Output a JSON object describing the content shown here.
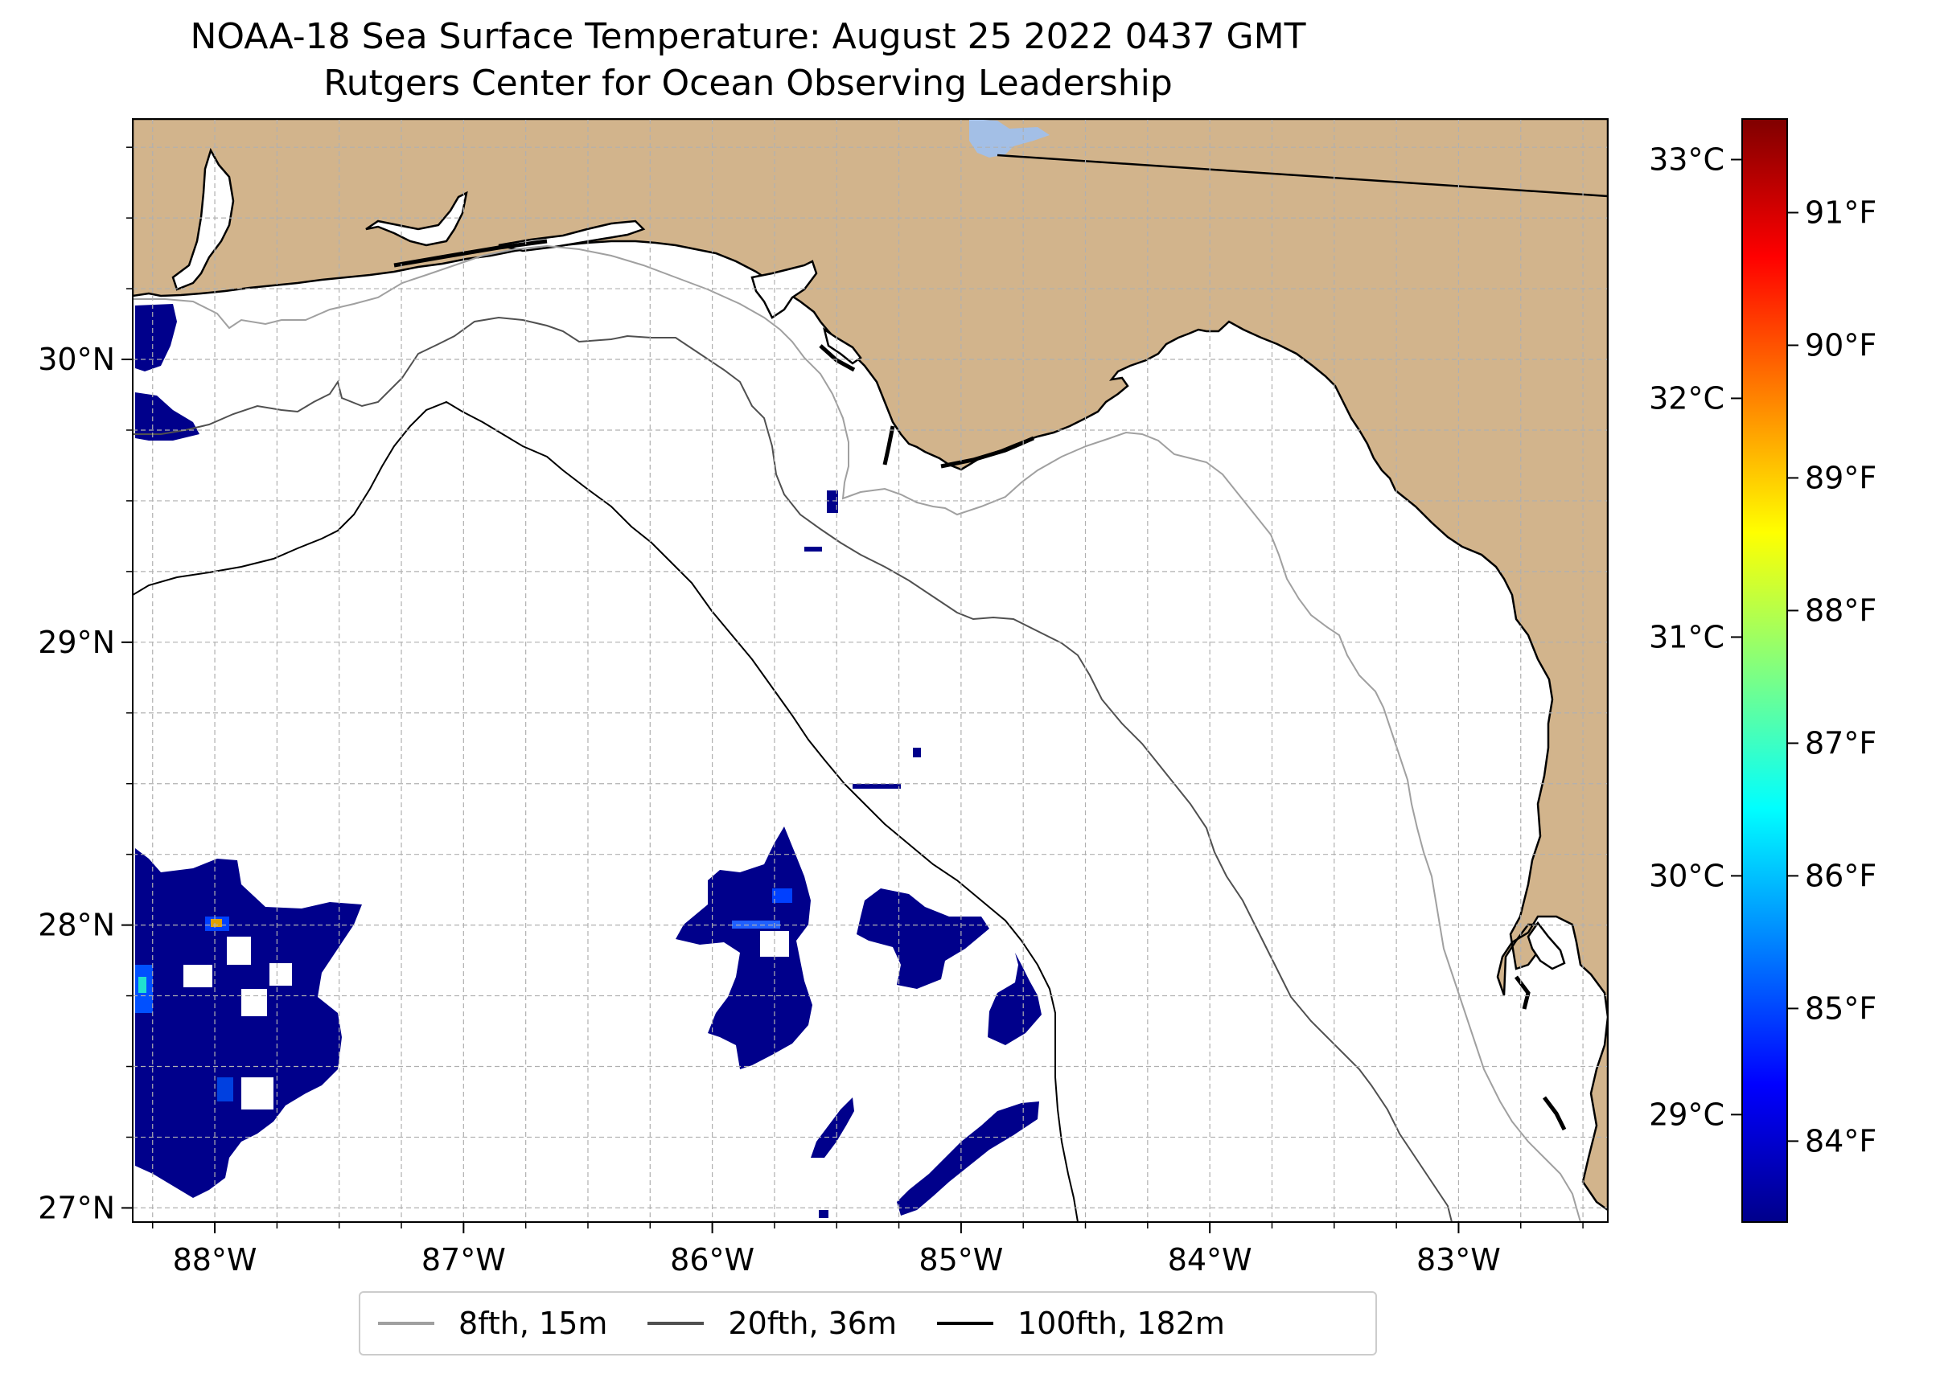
{
  "title": {
    "line1": "NOAA-18 Sea Surface Temperature: August 25 2022 0437 GMT",
    "line2": "Rutgers Center for Ocean Observing Leadership"
  },
  "map": {
    "lon_range": [
      -88.33,
      -82.4
    ],
    "lat_range": [
      26.95,
      30.85
    ],
    "lon_ticks": [
      {
        "value": -88,
        "label": "88°W"
      },
      {
        "value": -87,
        "label": "87°W"
      },
      {
        "value": -86,
        "label": "86°W"
      },
      {
        "value": -85,
        "label": "85°W"
      },
      {
        "value": -84,
        "label": "84°W"
      },
      {
        "value": -83,
        "label": "83°W"
      }
    ],
    "lat_ticks": [
      {
        "value": 27,
        "label": "27°N"
      },
      {
        "value": 28,
        "label": "28°N"
      },
      {
        "value": 29,
        "label": "29°N"
      },
      {
        "value": 30,
        "label": "30°N"
      }
    ],
    "colors": {
      "land": "#d2b48c",
      "ocean": "#ffffff",
      "lake": "#a3bfe6",
      "coastline": "#000000",
      "grid": "#b0b0b0",
      "sst_cold": "#00008b"
    }
  },
  "colorbar": {
    "range_c": [
      28.55,
      33.17
    ],
    "celsius_ticks": [
      {
        "value": 29,
        "label": "29°C"
      },
      {
        "value": 30,
        "label": "30°C"
      },
      {
        "value": 31,
        "label": "31°C"
      },
      {
        "value": 32,
        "label": "32°C"
      },
      {
        "value": 33,
        "label": "33°C"
      }
    ],
    "fahrenheit_ticks": [
      {
        "value": 84,
        "label": "84°F"
      },
      {
        "value": 85,
        "label": "85°F"
      },
      {
        "value": 86,
        "label": "86°F"
      },
      {
        "value": 87,
        "label": "87°F"
      },
      {
        "value": 88,
        "label": "88°F"
      },
      {
        "value": 89,
        "label": "89°F"
      },
      {
        "value": 90,
        "label": "90°F"
      },
      {
        "value": 91,
        "label": "91°F"
      }
    ],
    "colormap": [
      "#00008b",
      "#0000ff",
      "#0080ff",
      "#00ffff",
      "#80ff80",
      "#ffff00",
      "#ff8000",
      "#ff0000",
      "#800000"
    ]
  },
  "legend": {
    "items": [
      {
        "label": "8fth, 15m",
        "color": "#a0a0a0"
      },
      {
        "label": "20fth, 36m",
        "color": "#505050"
      },
      {
        "label": "100fth, 182m",
        "color": "#000000"
      }
    ]
  }
}
